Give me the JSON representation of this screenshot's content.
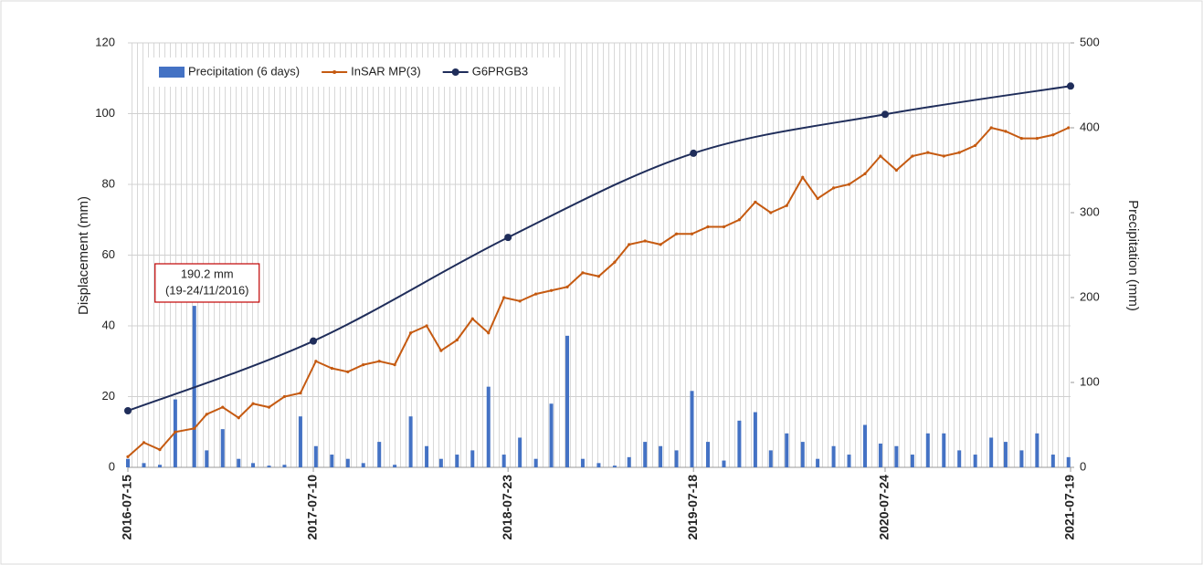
{
  "chart_data": {
    "type": "combo",
    "ylabel": "Displacement (mm)",
    "y2label": "Precipitation (mm)",
    "xlim": [
      "2016-07-15",
      "2021-07-19"
    ],
    "xticks": [
      "2016-07-15",
      "2017-07-10",
      "2018-07-23",
      "2019-07-18",
      "2020-07-24",
      "2021-07-19"
    ],
    "ylim": [
      0,
      120
    ],
    "yticks": [
      0,
      20,
      40,
      60,
      80,
      100,
      120
    ],
    "y2lim": [
      0,
      500
    ],
    "y2ticks": [
      0,
      100,
      200,
      300,
      400,
      500
    ],
    "grid": true,
    "legend": "top-left",
    "annotations": [
      "190.2 mm",
      "(19-24/11/2016)"
    ],
    "x": [
      "2016-07-15",
      "2016-08-15",
      "2016-09-15",
      "2016-10-15",
      "2016-11-21",
      "2016-12-15",
      "2017-01-15",
      "2017-02-15",
      "2017-03-15",
      "2017-04-15",
      "2017-05-15",
      "2017-06-15",
      "2017-07-15",
      "2017-08-15",
      "2017-09-15",
      "2017-10-15",
      "2017-11-15",
      "2017-12-15",
      "2018-01-15",
      "2018-02-15",
      "2018-03-15",
      "2018-04-15",
      "2018-05-15",
      "2018-06-15",
      "2018-07-15",
      "2018-08-15",
      "2018-09-15",
      "2018-10-15",
      "2018-11-15",
      "2018-12-15",
      "2019-01-15",
      "2019-02-15",
      "2019-03-15",
      "2019-04-15",
      "2019-05-15",
      "2019-06-15",
      "2019-07-15",
      "2019-08-15",
      "2019-09-15",
      "2019-10-15",
      "2019-11-15",
      "2019-12-15",
      "2020-01-15",
      "2020-02-15",
      "2020-03-15",
      "2020-04-15",
      "2020-05-15",
      "2020-06-15",
      "2020-07-15",
      "2020-08-15",
      "2020-09-15",
      "2020-10-15",
      "2020-11-15",
      "2020-12-15",
      "2021-01-15",
      "2021-02-15",
      "2021-03-15",
      "2021-04-15",
      "2021-05-15",
      "2021-06-15",
      "2021-07-15"
    ],
    "series": [
      {
        "name": "Precipitation (6 days)",
        "type": "bar",
        "axis": "y2",
        "color": "#4472c4",
        "values": [
          10,
          5,
          3,
          80,
          190.2,
          20,
          45,
          10,
          5,
          2,
          3,
          60,
          25,
          15,
          10,
          5,
          30,
          3,
          60,
          25,
          10,
          15,
          20,
          95,
          15,
          35,
          10,
          75,
          155,
          10,
          5,
          2,
          12,
          30,
          25,
          20,
          90,
          30,
          8,
          55,
          65,
          20,
          40,
          30,
          10,
          25,
          15,
          50,
          28,
          25,
          15,
          40,
          40,
          20,
          15,
          35,
          30,
          20,
          40,
          15,
          12
        ]
      },
      {
        "name": "InSAR MP(3)",
        "type": "line",
        "color": "#c55a11",
        "values": [
          3,
          7,
          5,
          10,
          11,
          15,
          17,
          14,
          18,
          17,
          20,
          21,
          30,
          28,
          27,
          29,
          30,
          29,
          38,
          40,
          33,
          36,
          42,
          38,
          48,
          47,
          49,
          50,
          51,
          55,
          54,
          58,
          63,
          64,
          63,
          66,
          66,
          68,
          68,
          70,
          75,
          72,
          74,
          82,
          76,
          79,
          80,
          83,
          88,
          84,
          88,
          89,
          88,
          89,
          91,
          96,
          95,
          93,
          93,
          94,
          96
        ]
      },
      {
        "name": "G6PRGB3",
        "type": "smooth",
        "color": "#1f2d5a",
        "x": [
          "2016-07-15",
          "2017-07-10",
          "2018-07-23",
          "2019-07-18",
          "2020-07-24",
          "2021-07-19"
        ],
        "values": [
          16,
          35.7,
          65,
          88.8,
          99.8,
          107.8
        ]
      }
    ]
  }
}
